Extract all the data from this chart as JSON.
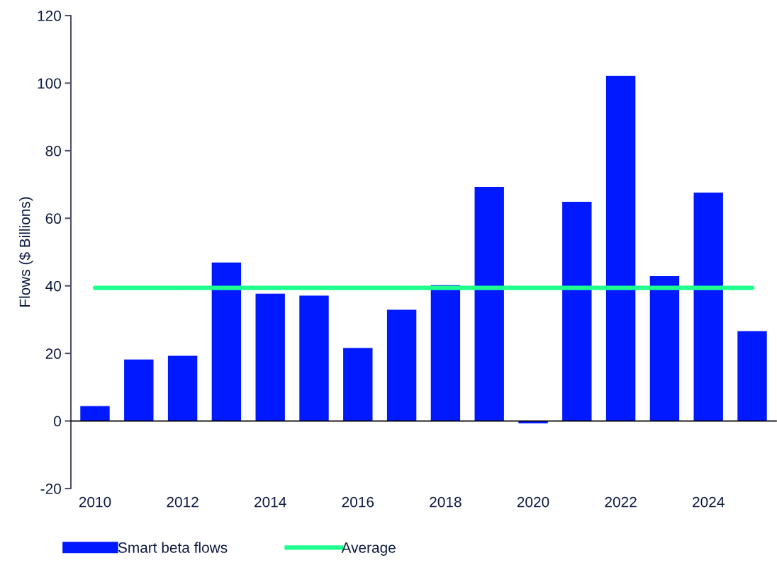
{
  "chart_data": {
    "type": "bar",
    "ylabel": "Flows ($ Billions)",
    "categories": [
      "2010",
      null,
      "2012",
      null,
      "2014",
      null,
      "2016",
      null,
      "2018",
      null,
      "2020",
      null,
      "2022",
      null,
      "2024",
      null
    ],
    "series": [
      {
        "name": "Smart beta flows",
        "color": "#0019ff",
        "values": [
          4.4,
          18.2,
          19.3,
          46.9,
          37.7,
          37.1,
          21.6,
          32.9,
          40.2,
          69.3,
          -0.7,
          64.9,
          102.2,
          42.9,
          67.6,
          26.6
        ]
      },
      {
        "name": "Average",
        "type": "line",
        "color": "#1eff8e",
        "values": [
          39.4,
          39.4,
          39.4,
          39.4,
          39.4,
          39.4,
          39.4,
          39.4,
          39.4,
          39.4,
          39.4,
          39.4,
          39.4,
          39.4,
          39.4,
          39.4
        ]
      }
    ],
    "ylim": [
      -20,
      120
    ],
    "yticks": [
      -20,
      0,
      20,
      40,
      60,
      80,
      100,
      120
    ],
    "legend": "bottom"
  }
}
